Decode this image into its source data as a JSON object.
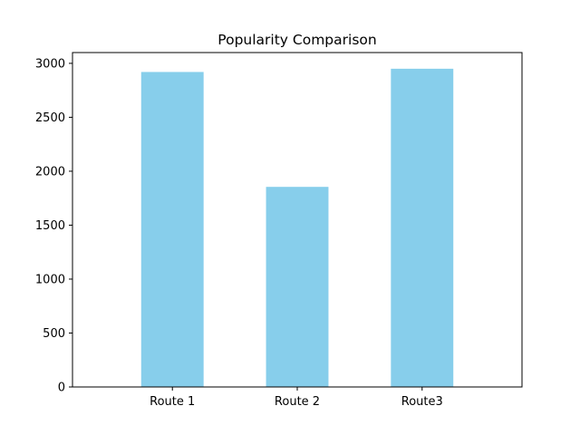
{
  "chart_data": {
    "type": "bar",
    "title": "Popularity Comparison",
    "xlabel": "",
    "ylabel": "",
    "categories": [
      "Route 1",
      "Route 2",
      "Route3"
    ],
    "values": [
      2920,
      1855,
      2950
    ],
    "ylim": [
      0,
      3100
    ],
    "yticks": [
      0,
      500,
      1000,
      1500,
      2000,
      2500,
      3000
    ],
    "bar_color": "#87ceeb",
    "grid": false,
    "legend": "none"
  }
}
